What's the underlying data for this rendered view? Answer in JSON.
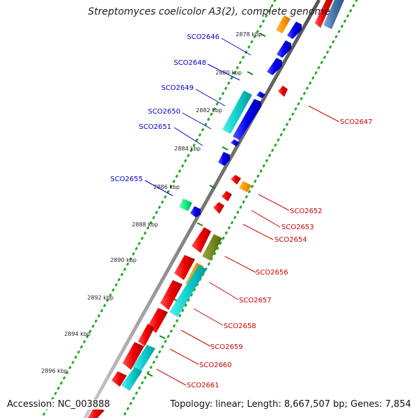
{
  "header": {
    "title": "Streptomyces coelicolor A3(2), complete genome"
  },
  "footer": {
    "accession": "Accession: NC_003888",
    "summary": "Topology: linear; Length: 8,667,507 bp; Genes: 7,854"
  },
  "colors": {
    "forward_label": "#0000cc",
    "reverse_label": "#cc0000",
    "backbone": "#888888",
    "scale_dots": "#22aa22",
    "tick": "#118811"
  },
  "scale": {
    "ticks": [
      "2878 kbp",
      "2880 kbp",
      "2882 kbp",
      "2884 kbp",
      "2886 kbp",
      "2888 kbp",
      "2890 kbp",
      "2892 kbp",
      "2894 kbp",
      "2896 kbp"
    ]
  },
  "genes": {
    "forward": [
      "SCO2646",
      "SCO2648",
      "SCO2649",
      "SCO2650",
      "SCO2651",
      "SCO2655"
    ],
    "reverse": [
      "SCO2647",
      "SCO2652",
      "SCO2653",
      "SCO2654",
      "SCO2656",
      "SCO2657",
      "SCO2658",
      "SCO2659",
      "SCO2660",
      "SCO2661"
    ]
  }
}
